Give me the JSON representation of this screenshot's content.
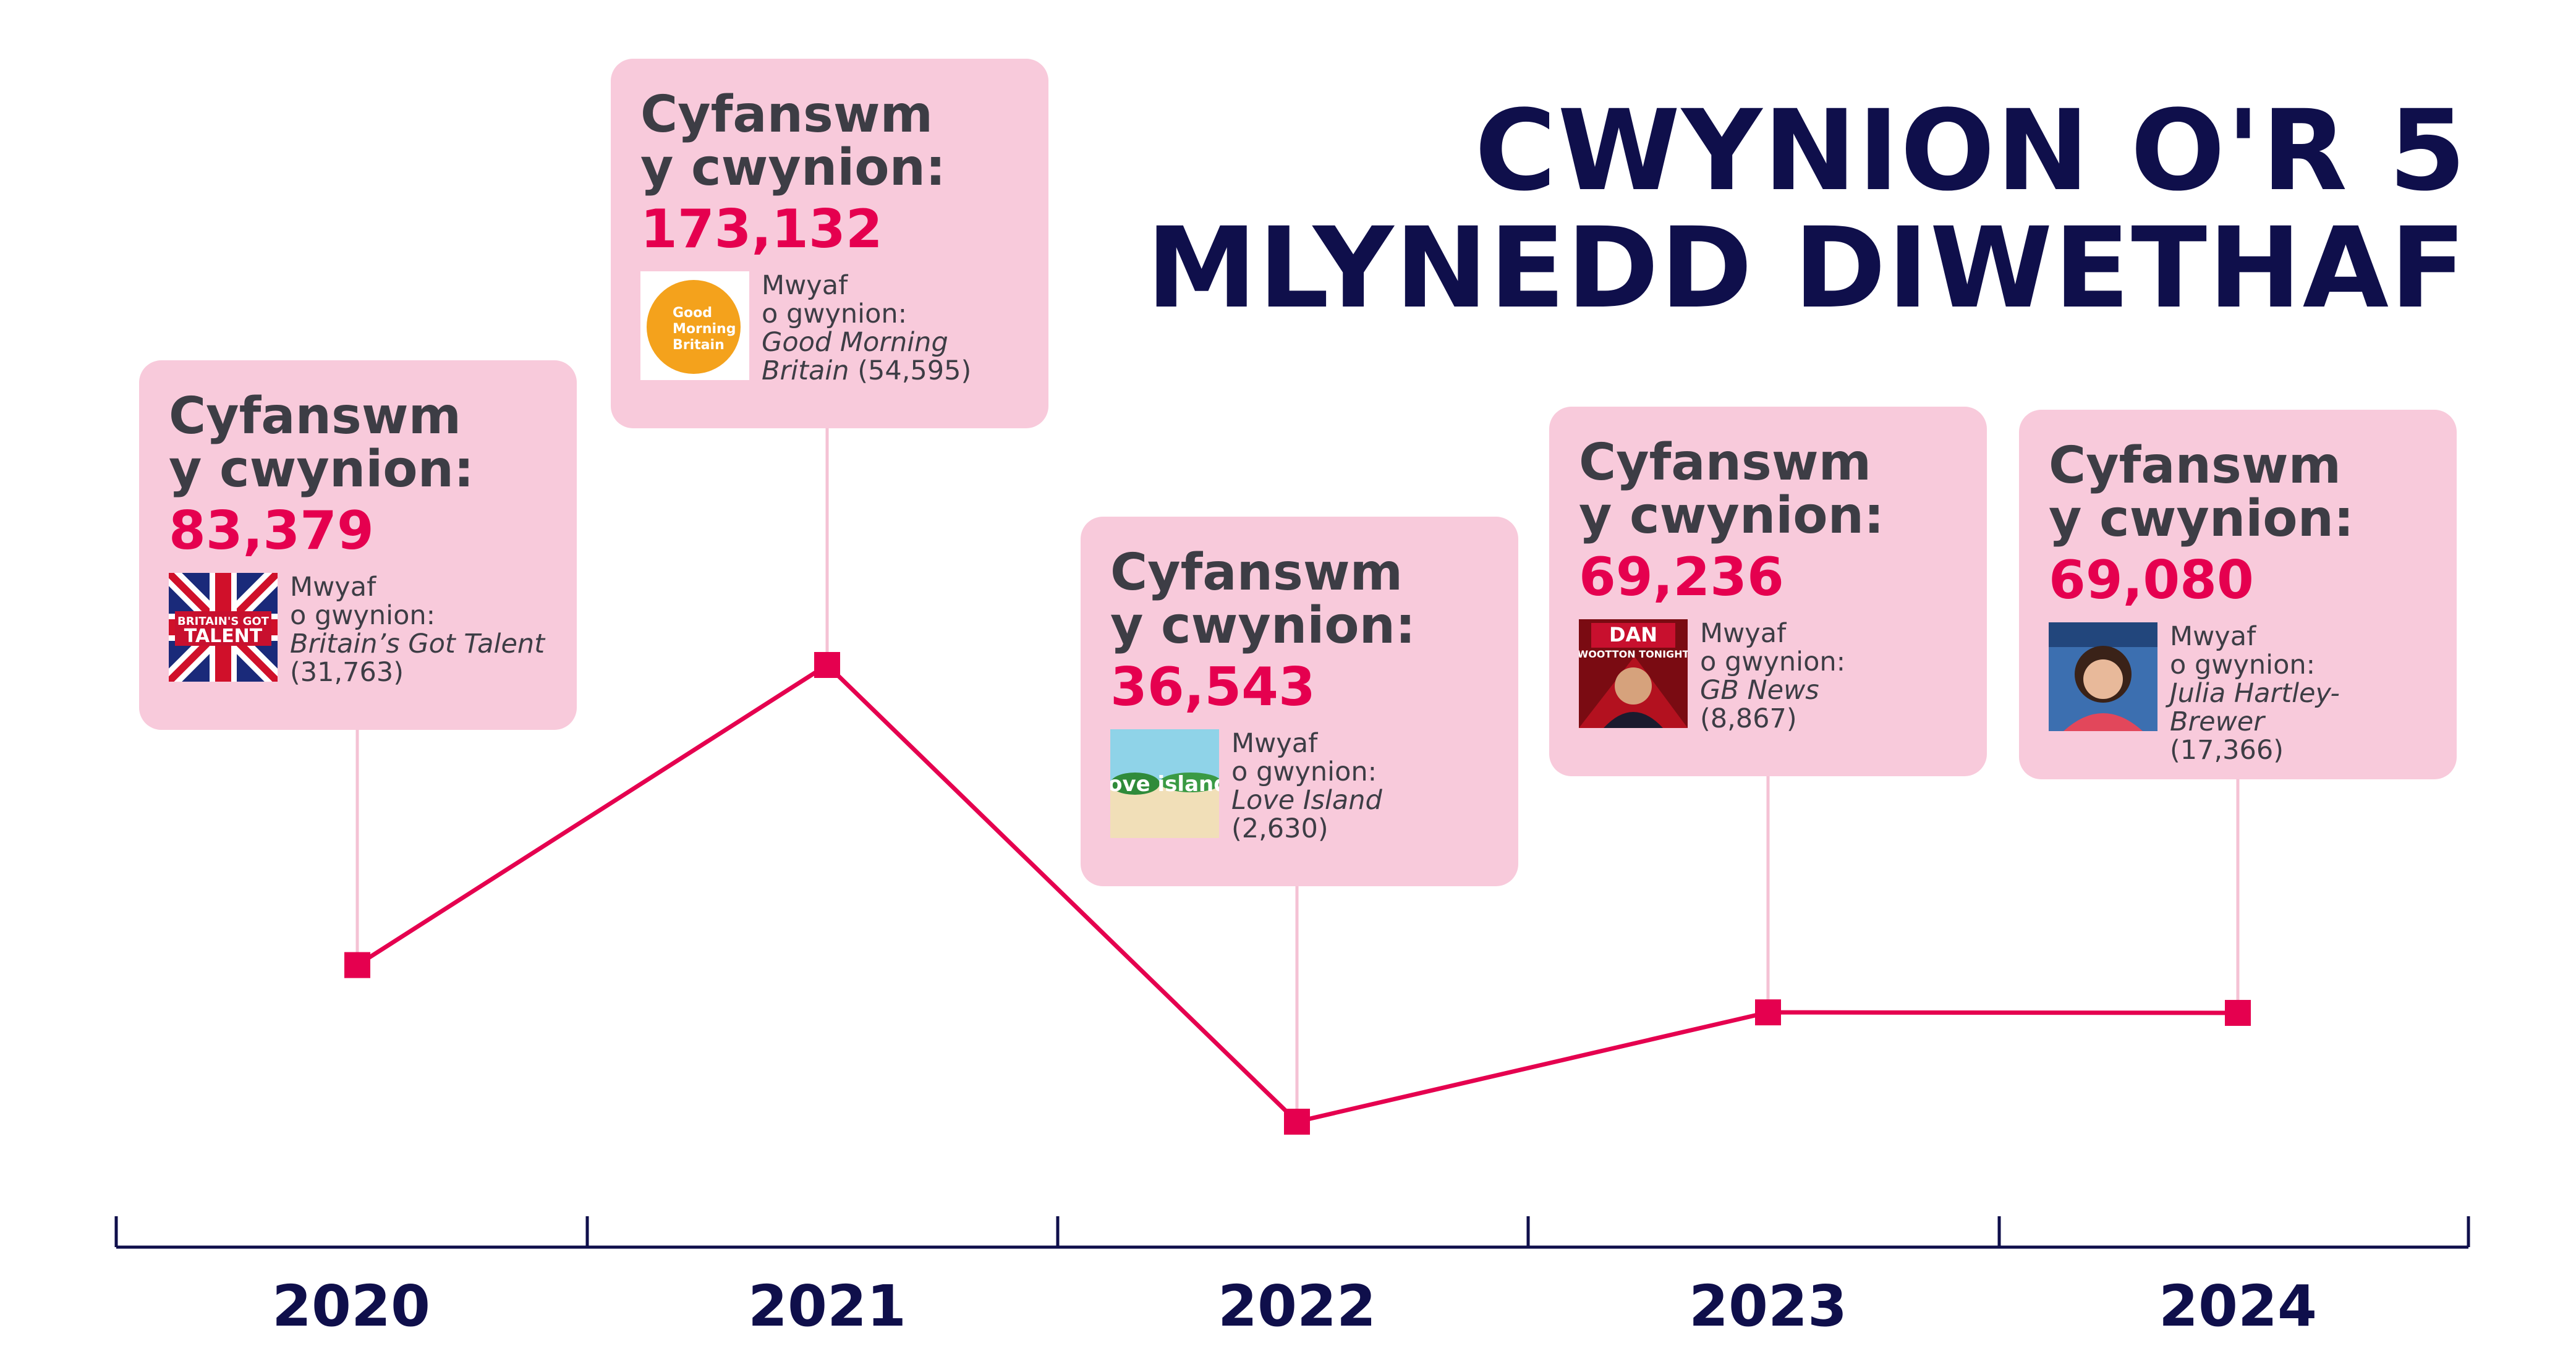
{
  "title": {
    "line1": "CWYNION O'R 5",
    "line2": "MLYNEDD DIWETHAF"
  },
  "colors": {
    "line": "#e5004f",
    "navy": "#0f0f4b",
    "card": "#f8cadb",
    "connector": "#f4c2d4"
  },
  "cards": [
    {
      "label1": "Cyfanswm",
      "label2": "y cwynion:",
      "total": "83,379",
      "most1": "Mwyaf",
      "most2": "o gwynion:",
      "show": "Britain’s Got Talent",
      "count": "(31,763)",
      "thumb": "britains-got-talent-logo"
    },
    {
      "label1": "Cyfanswm",
      "label2": "y cwynion:",
      "total": "173,132",
      "most1": "Mwyaf",
      "most2": "o gwynion:",
      "show": "Good Morning Britain",
      "count": "(54,595)",
      "thumb": "good-morning-britain-logo",
      "logo_text": "Good Morning Britain"
    },
    {
      "label1": "Cyfanswm",
      "label2": "y cwynion:",
      "total": "36,543",
      "most1": "Mwyaf",
      "most2": "o gwynion:",
      "show": "Love Island",
      "count": "(2,630)",
      "thumb": "love-island-logo",
      "logo_text": "love island"
    },
    {
      "label1": "Cyfanswm",
      "label2": "y cwynion:",
      "total": "69,236",
      "most1": "Mwyaf",
      "most2": "o gwynion:",
      "show": "GB News",
      "count": "(8,867)",
      "thumb": "dan-wootton-tonight-image",
      "logo_text": "DAN WOOTTON TONIGHT"
    },
    {
      "label1": "Cyfanswm",
      "label2": "y cwynion:",
      "total": "69,080",
      "most1": "Mwyaf",
      "most2": "o gwynion:",
      "show": "Julia Hartley-Brewer",
      "count": "(17,366)",
      "thumb": "julia-hartley-brewer-photo"
    }
  ],
  "chart_data": {
    "type": "line",
    "x": [
      "2020",
      "2021",
      "2022",
      "2023",
      "2024"
    ],
    "values": [
      83379,
      173132,
      36543,
      69236,
      69080
    ]
  }
}
